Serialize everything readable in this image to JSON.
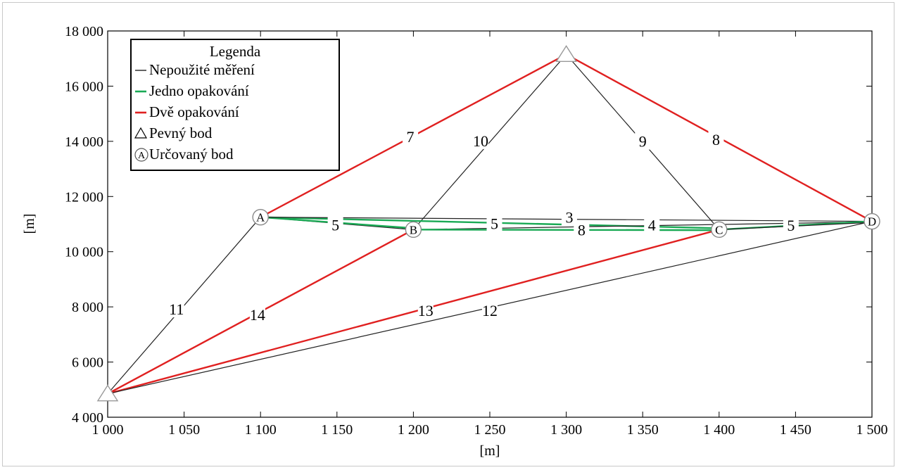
{
  "chart_data": {
    "type": "network",
    "xlabel": "[m]",
    "ylabel": "[m]",
    "xlim": [
      1000,
      1500
    ],
    "ylim": [
      4000,
      18000
    ],
    "x_ticks": [
      {
        "value": 1000,
        "label": "1 000"
      },
      {
        "value": 1050,
        "label": "1 050"
      },
      {
        "value": 1100,
        "label": "1 100"
      },
      {
        "value": 1150,
        "label": "1 150"
      },
      {
        "value": 1200,
        "label": "1 200"
      },
      {
        "value": 1250,
        "label": "1 250"
      },
      {
        "value": 1300,
        "label": "1 300"
      },
      {
        "value": 1350,
        "label": "1 350"
      },
      {
        "value": 1400,
        "label": "1 400"
      },
      {
        "value": 1450,
        "label": "1 450"
      },
      {
        "value": 1500,
        "label": "1 500"
      }
    ],
    "y_ticks": [
      {
        "value": 4000,
        "label": "4 000"
      },
      {
        "value": 6000,
        "label": "6 000"
      },
      {
        "value": 8000,
        "label": "8 000"
      },
      {
        "value": 10000,
        "label": "10 000"
      },
      {
        "value": 12000,
        "label": "12 000"
      },
      {
        "value": 14000,
        "label": "14 000"
      },
      {
        "value": 16000,
        "label": "16 000"
      },
      {
        "value": 18000,
        "label": "18 000"
      }
    ],
    "legend": {
      "title": "Legenda",
      "placement": "top-left",
      "entries": [
        {
          "label": "Nepoužité měření",
          "kind": "line",
          "color": "#222222"
        },
        {
          "label": "Jedno opakování",
          "kind": "line",
          "color": "#1aaa55"
        },
        {
          "label": "Dvě opakování",
          "kind": "line",
          "color": "#e02020"
        },
        {
          "label": "Pevný bod",
          "kind": "triangle"
        },
        {
          "label": "Určovaný bod",
          "kind": "circle",
          "symbol": "A"
        }
      ]
    },
    "fixed_points": [
      {
        "x": 1000,
        "y": 4850
      },
      {
        "x": 1300,
        "y": 17150
      }
    ],
    "determined_points": [
      {
        "name": "A",
        "x": 1100,
        "y": 11250
      },
      {
        "name": "B",
        "x": 1200,
        "y": 10800
      },
      {
        "name": "C",
        "x": 1400,
        "y": 10800
      },
      {
        "name": "D",
        "x": 1500,
        "y": 11100
      }
    ],
    "segments": [
      {
        "x1": 1000,
        "y1": 4850,
        "x2": 1100,
        "y2": 11250,
        "color": "#222222",
        "label": "11",
        "lx": 1045,
        "ly": 7900
      },
      {
        "x1": 1000,
        "y1": 4850,
        "x2": 1200,
        "y2": 10800,
        "color": "#e02020",
        "label": "14",
        "lx": 1098,
        "ly": 7700
      },
      {
        "x1": 1000,
        "y1": 4850,
        "x2": 1400,
        "y2": 10800,
        "color": "#e02020",
        "label": "13",
        "lx": 1208,
        "ly": 7850
      },
      {
        "x1": 1000,
        "y1": 4850,
        "x2": 1500,
        "y2": 11100,
        "color": "#222222",
        "label": "12",
        "lx": 1250,
        "ly": 7850
      },
      {
        "x1": 1100,
        "y1": 11250,
        "x2": 1300,
        "y2": 17150,
        "color": "#e02020",
        "label": "7",
        "lx": 1198,
        "ly": 14150
      },
      {
        "x1": 1500,
        "y1": 11100,
        "x2": 1300,
        "y2": 17150,
        "color": "#e02020",
        "label": "8",
        "lx": 1398,
        "ly": 14050
      },
      {
        "x1": 1200,
        "y1": 10800,
        "x2": 1300,
        "y2": 17150,
        "color": "#222222",
        "label": "10",
        "lx": 1244,
        "ly": 14000
      },
      {
        "x1": 1400,
        "y1": 10800,
        "x2": 1300,
        "y2": 17150,
        "color": "#222222",
        "label": "9",
        "lx": 1350,
        "ly": 13980
      },
      {
        "x1": 1100,
        "y1": 11250,
        "x2": 1200,
        "y2": 10800,
        "color": "#222222",
        "label": "5",
        "lx": 1149,
        "ly": 10950
      },
      {
        "x1": 1100,
        "y1": 11250,
        "x2": 1200,
        "y2": 10850,
        "color": "#1aaa55",
        "label": "",
        "lx": 0,
        "ly": 0
      },
      {
        "x1": 1100,
        "y1": 11250,
        "x2": 1400,
        "y2": 10850,
        "color": "#1aaa55",
        "label": "5",
        "lx": 1253,
        "ly": 11000
      },
      {
        "x1": 1100,
        "y1": 11250,
        "x2": 1500,
        "y2": 11100,
        "color": "#222222",
        "label": "3",
        "lx": 1302,
        "ly": 11230
      },
      {
        "x1": 1200,
        "y1": 10800,
        "x2": 1500,
        "y2": 11080,
        "color": "#222222",
        "label": "4",
        "lx": 1356,
        "ly": 10950
      },
      {
        "x1": 1200,
        "y1": 10800,
        "x2": 1400,
        "y2": 10780,
        "color": "#1aaa55",
        "label": "8",
        "lx": 1310,
        "ly": 10770
      },
      {
        "x1": 1400,
        "y1": 10800,
        "x2": 1500,
        "y2": 11100,
        "color": "#1aaa55",
        "label": "5",
        "lx": 1447,
        "ly": 10930
      },
      {
        "x1": 1400,
        "y1": 10800,
        "x2": 1500,
        "y2": 11060,
        "color": "#222222",
        "label": "",
        "lx": 0,
        "ly": 0
      }
    ]
  }
}
